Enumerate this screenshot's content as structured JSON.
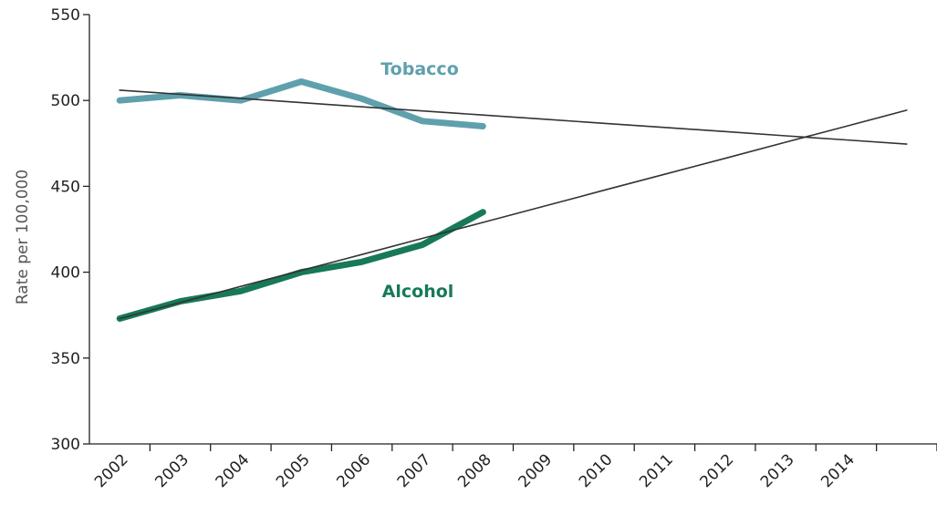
{
  "chart_data": {
    "type": "line",
    "y_label": "Rate per 100,000",
    "categories": [
      "2002",
      "2003",
      "2004",
      "2005",
      "2006",
      "2007",
      "2008",
      "2009",
      "2010",
      "2011",
      "2012",
      "2013",
      "2014",
      null
    ],
    "series": [
      {
        "name": "Tobacco",
        "color": "#5fa0ad",
        "values": [
          500,
          503,
          500,
          511,
          501,
          488,
          485,
          null,
          null,
          null,
          null,
          null,
          null,
          null
        ]
      },
      {
        "name": "Alcohol",
        "color": "#17795a",
        "values": [
          373,
          383,
          389,
          400,
          406,
          416,
          435,
          null,
          null,
          null,
          null,
          null,
          null,
          null
        ]
      },
      {
        "color": "#333333",
        "values": [
          506,
          503.6,
          501.2,
          498.7,
          496.3,
          493.9,
          491.5,
          489.1,
          486.7,
          484.3,
          481.9,
          479.4,
          477,
          474.6
        ]
      },
      {
        "color": "#333333",
        "values": [
          373,
          382.3,
          391.7,
          401,
          410.3,
          419.7,
          429,
          438.3,
          447.7,
          457,
          466.3,
          475.7,
          485,
          494.3
        ]
      }
    ],
    "ylim": [
      300,
      550
    ],
    "yticks": [
      300,
      350,
      400,
      450,
      500,
      550
    ],
    "grid": false
  }
}
